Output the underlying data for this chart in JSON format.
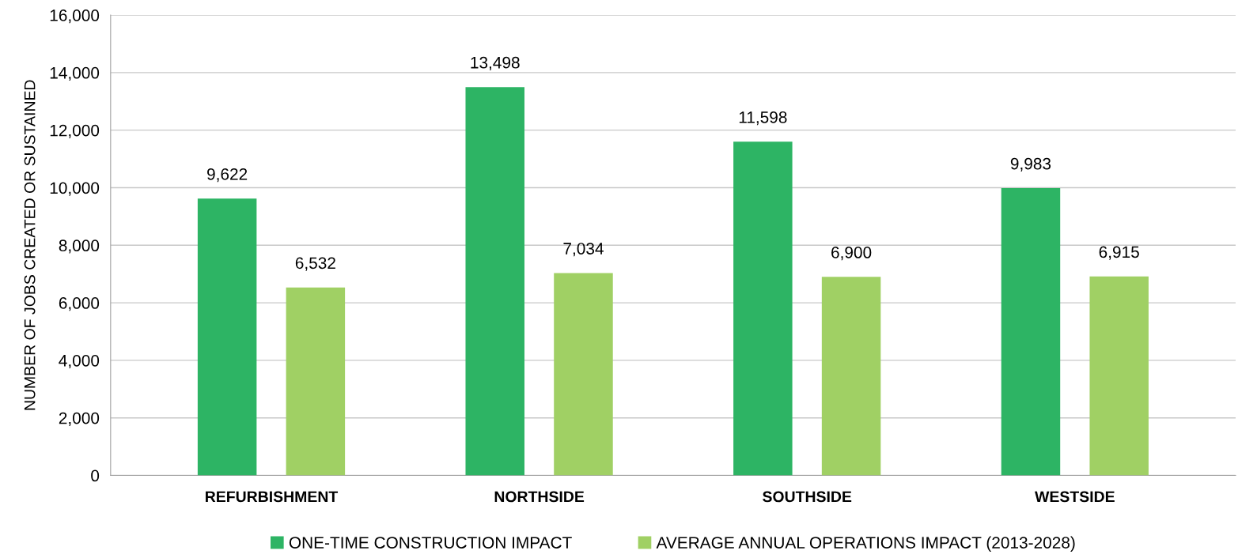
{
  "chart_data": {
    "type": "bar",
    "ylabel": "NUMBER OF JOBS CREATED OR SUSTAINED",
    "categories": [
      "REFURBISHMENT",
      "NORTHSIDE",
      "SOUTHSIDE",
      "WESTSIDE"
    ],
    "series": [
      {
        "name": "ONE-TIME CONSTRUCTION IMPACT",
        "color": "#2db464",
        "values": [
          9622,
          13498,
          11598,
          9983
        ],
        "value_labels": [
          "9,622",
          "13,498",
          "11,598",
          "9,983"
        ]
      },
      {
        "name": "AVERAGE ANNUAL OPERATIONS IMPACT (2013-2028)",
        "color": "#a0d064",
        "values": [
          6532,
          7034,
          6900,
          6915
        ],
        "value_labels": [
          "6,532",
          "7,034",
          "6,900",
          "6,915"
        ]
      }
    ],
    "ylim": [
      0,
      16000
    ],
    "yticks": [
      {
        "value": 0,
        "label": "0"
      },
      {
        "value": 2000,
        "label": "2,000"
      },
      {
        "value": 4000,
        "label": "4,000"
      },
      {
        "value": 6000,
        "label": "6,000"
      },
      {
        "value": 8000,
        "label": "8,000"
      },
      {
        "value": 10000,
        "label": "10,000"
      },
      {
        "value": 12000,
        "label": "12,000"
      },
      {
        "value": 14000,
        "label": "14,000"
      },
      {
        "value": 16000,
        "label": "16,000"
      }
    ],
    "grid": "y",
    "legend": "bottom"
  }
}
